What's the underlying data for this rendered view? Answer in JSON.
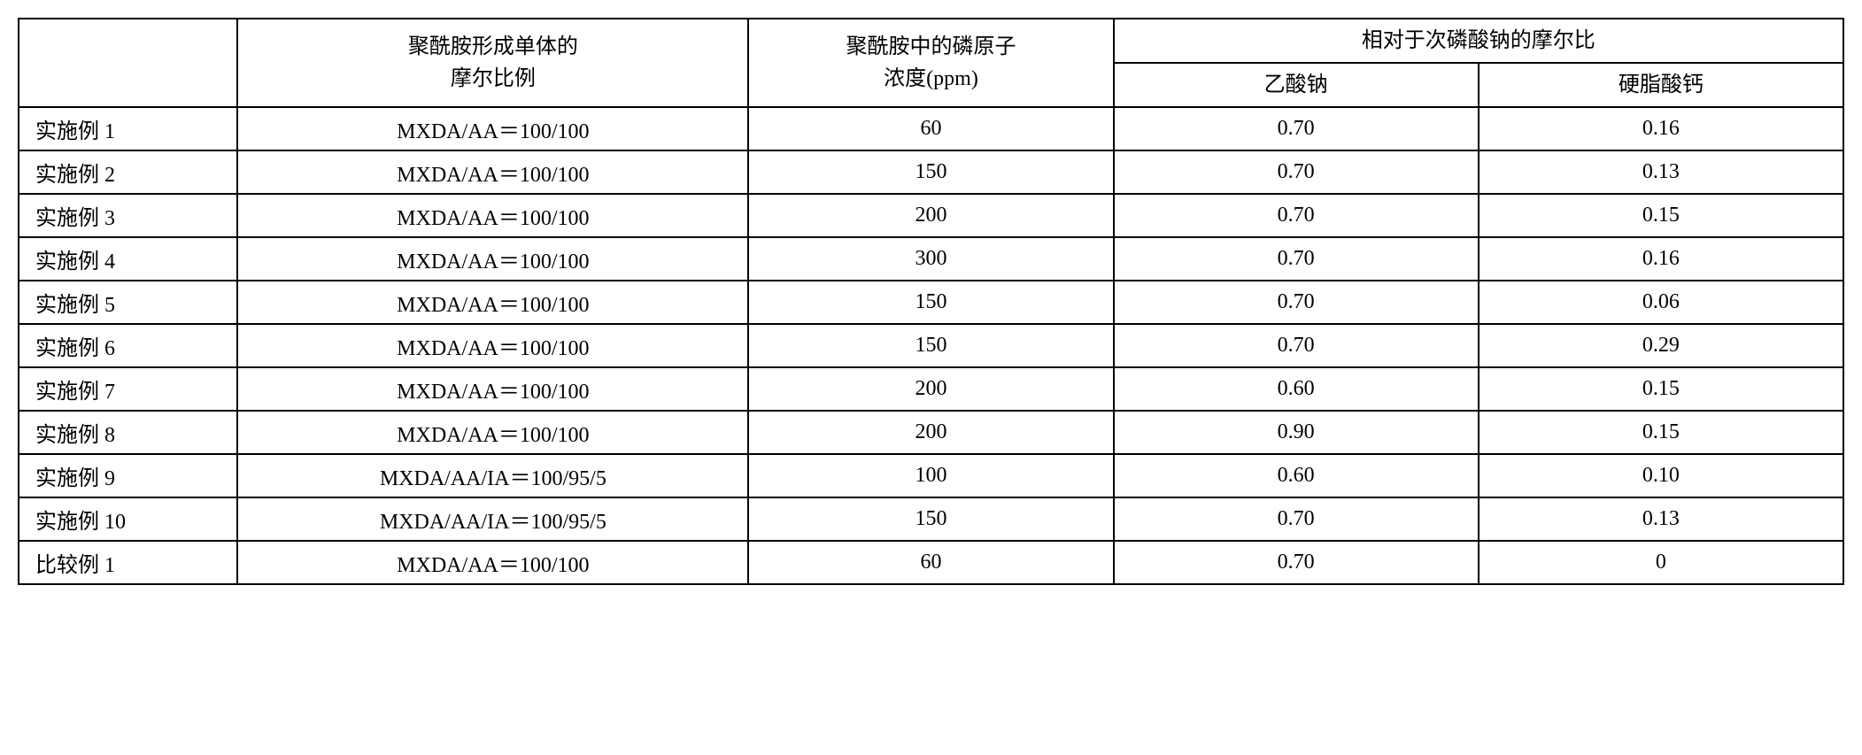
{
  "table": {
    "headers": {
      "col1_line1": "聚酰胺形成单体的",
      "col1_line2": "摩尔比例",
      "col2_line1": "聚酰胺中的磷原子",
      "col2_line2": "浓度(ppm)",
      "col3_group": "相对于次磷酸钠的摩尔比",
      "col3_sub1": "乙酸钠",
      "col3_sub2": "硬脂酸钙"
    },
    "rows": [
      {
        "label": "实施例 1",
        "monomer": "MXDA/AA＝100/100",
        "phosphorus": "60",
        "sodium_acetate": "0.70",
        "calcium_stearate": "0.16"
      },
      {
        "label": "实施例 2",
        "monomer": "MXDA/AA＝100/100",
        "phosphorus": "150",
        "sodium_acetate": "0.70",
        "calcium_stearate": "0.13"
      },
      {
        "label": "实施例 3",
        "monomer": "MXDA/AA＝100/100",
        "phosphorus": "200",
        "sodium_acetate": "0.70",
        "calcium_stearate": "0.15"
      },
      {
        "label": "实施例 4",
        "monomer": "MXDA/AA＝100/100",
        "phosphorus": "300",
        "sodium_acetate": "0.70",
        "calcium_stearate": "0.16"
      },
      {
        "label": "实施例 5",
        "monomer": "MXDA/AA＝100/100",
        "phosphorus": "150",
        "sodium_acetate": "0.70",
        "calcium_stearate": "0.06"
      },
      {
        "label": "实施例 6",
        "monomer": "MXDA/AA＝100/100",
        "phosphorus": "150",
        "sodium_acetate": "0.70",
        "calcium_stearate": "0.29"
      },
      {
        "label": "实施例 7",
        "monomer": "MXDA/AA＝100/100",
        "phosphorus": "200",
        "sodium_acetate": "0.60",
        "calcium_stearate": "0.15"
      },
      {
        "label": "实施例 8",
        "monomer": "MXDA/AA＝100/100",
        "phosphorus": "200",
        "sodium_acetate": "0.90",
        "calcium_stearate": "0.15"
      },
      {
        "label": "实施例 9",
        "monomer": "MXDA/AA/IA＝100/95/5",
        "phosphorus": "100",
        "sodium_acetate": "0.60",
        "calcium_stearate": "0.10"
      },
      {
        "label": "实施例 10",
        "monomer": "MXDA/AA/IA＝100/95/5",
        "phosphorus": "150",
        "sodium_acetate": "0.70",
        "calcium_stearate": "0.13"
      },
      {
        "label": "比较例 1",
        "monomer": "MXDA/AA＝100/100",
        "phosphorus": "60",
        "sodium_acetate": "0.70",
        "calcium_stearate": "0"
      }
    ],
    "styling": {
      "border_color": "#000000",
      "background_color": "#ffffff",
      "text_color": "#000000",
      "font_family": "SimSun",
      "base_font_size": 24,
      "border_width": 2
    }
  }
}
